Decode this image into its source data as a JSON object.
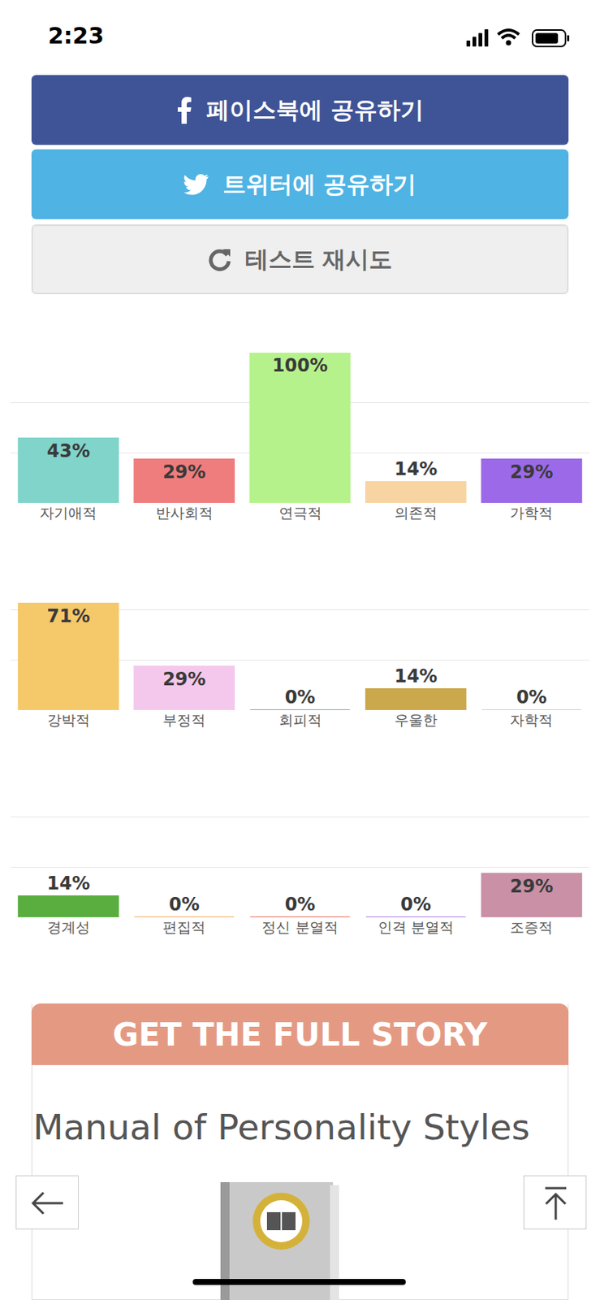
{
  "status_bar": {
    "time": "2:23"
  },
  "buttons": [
    "페이스북에 공유하기",
    "트위터에 공유하기",
    "테스트 재시도"
  ],
  "chart_data": [
    {
      "type": "bar",
      "categories": [
        "자기애적",
        "반사회적",
        "연극적",
        "의존적",
        "가학적"
      ],
      "values": [
        43,
        29,
        100,
        14,
        29
      ],
      "value_labels": [
        "43%",
        "29%",
        "100%",
        "14%",
        "29%"
      ],
      "colors": [
        "#80d4ca",
        "#ef7d7d",
        "#b6f28c",
        "#f8d4a2",
        "#9c6ae8"
      ],
      "ylim": [
        0,
        100
      ],
      "yticks": [
        0,
        33.3,
        66.7,
        100
      ],
      "grid": true,
      "data_labels": true,
      "tick_labels": "x"
    },
    {
      "type": "bar",
      "categories": [
        "강박적",
        "부정적",
        "회피적",
        "우울한",
        "자학적"
      ],
      "values": [
        71,
        29,
        0,
        14,
        0
      ],
      "value_labels": [
        "71%",
        "29%",
        "0%",
        "14%",
        "0%"
      ],
      "colors": [
        "#f5c86a",
        "#f4c8ed",
        "#6aaedc",
        "#cba84c",
        "#b8dad8"
      ],
      "ylim": [
        0,
        100
      ],
      "yticks": [
        0,
        33.3,
        66.7,
        100
      ],
      "grid": true,
      "data_labels": true,
      "tick_labels": "x"
    },
    {
      "type": "bar",
      "categories": [
        "경계성",
        "편집적",
        "정신 분열적",
        "인격 분열적",
        "조증적"
      ],
      "values": [
        14,
        0,
        0,
        0,
        29
      ],
      "value_labels": [
        "14%",
        "0%",
        "0%",
        "0%",
        "29%"
      ],
      "colors": [
        "#5aae3f",
        "#f0b060",
        "#e87060",
        "#b080e0",
        "#c990a6"
      ],
      "ylim": [
        0,
        100
      ],
      "yticks": [
        0,
        33.3,
        66.7,
        100
      ],
      "grid": true,
      "data_labels": true,
      "tick_labels": "x"
    }
  ],
  "banner": {
    "title": "GET THE FULL STORY",
    "heading": "Manual of Personality Styles"
  }
}
